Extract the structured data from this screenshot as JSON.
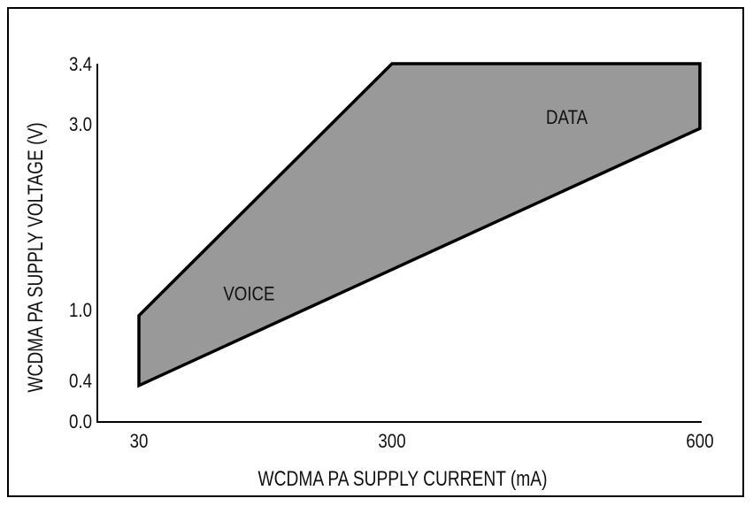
{
  "chart_data": {
    "type": "area",
    "title": "",
    "xlabel": "WCDMA PA SUPPLY CURRENT (mA)",
    "ylabel": "WCDMA PA SUPPLY VOLTAGE (V)",
    "x_ticks": [
      "30",
      "300",
      "600"
    ],
    "y_ticks": [
      "0.0",
      "0.4",
      "1.0",
      "3.0",
      "3.4"
    ],
    "region": {
      "color": "#999999",
      "upper": [
        {
          "x": 30,
          "y": 0.95
        },
        {
          "x": 300,
          "y": 3.4
        },
        {
          "x": 600,
          "y": 3.4
        }
      ],
      "lower": [
        {
          "x": 30,
          "y": 0.35
        },
        {
          "x": 600,
          "y": 2.95
        }
      ]
    },
    "annotations": [
      {
        "text": "VOICE",
        "x": 120,
        "y": 1.1
      },
      {
        "text": "DATA",
        "x": 450,
        "y": 3.0
      }
    ],
    "grid": false
  }
}
